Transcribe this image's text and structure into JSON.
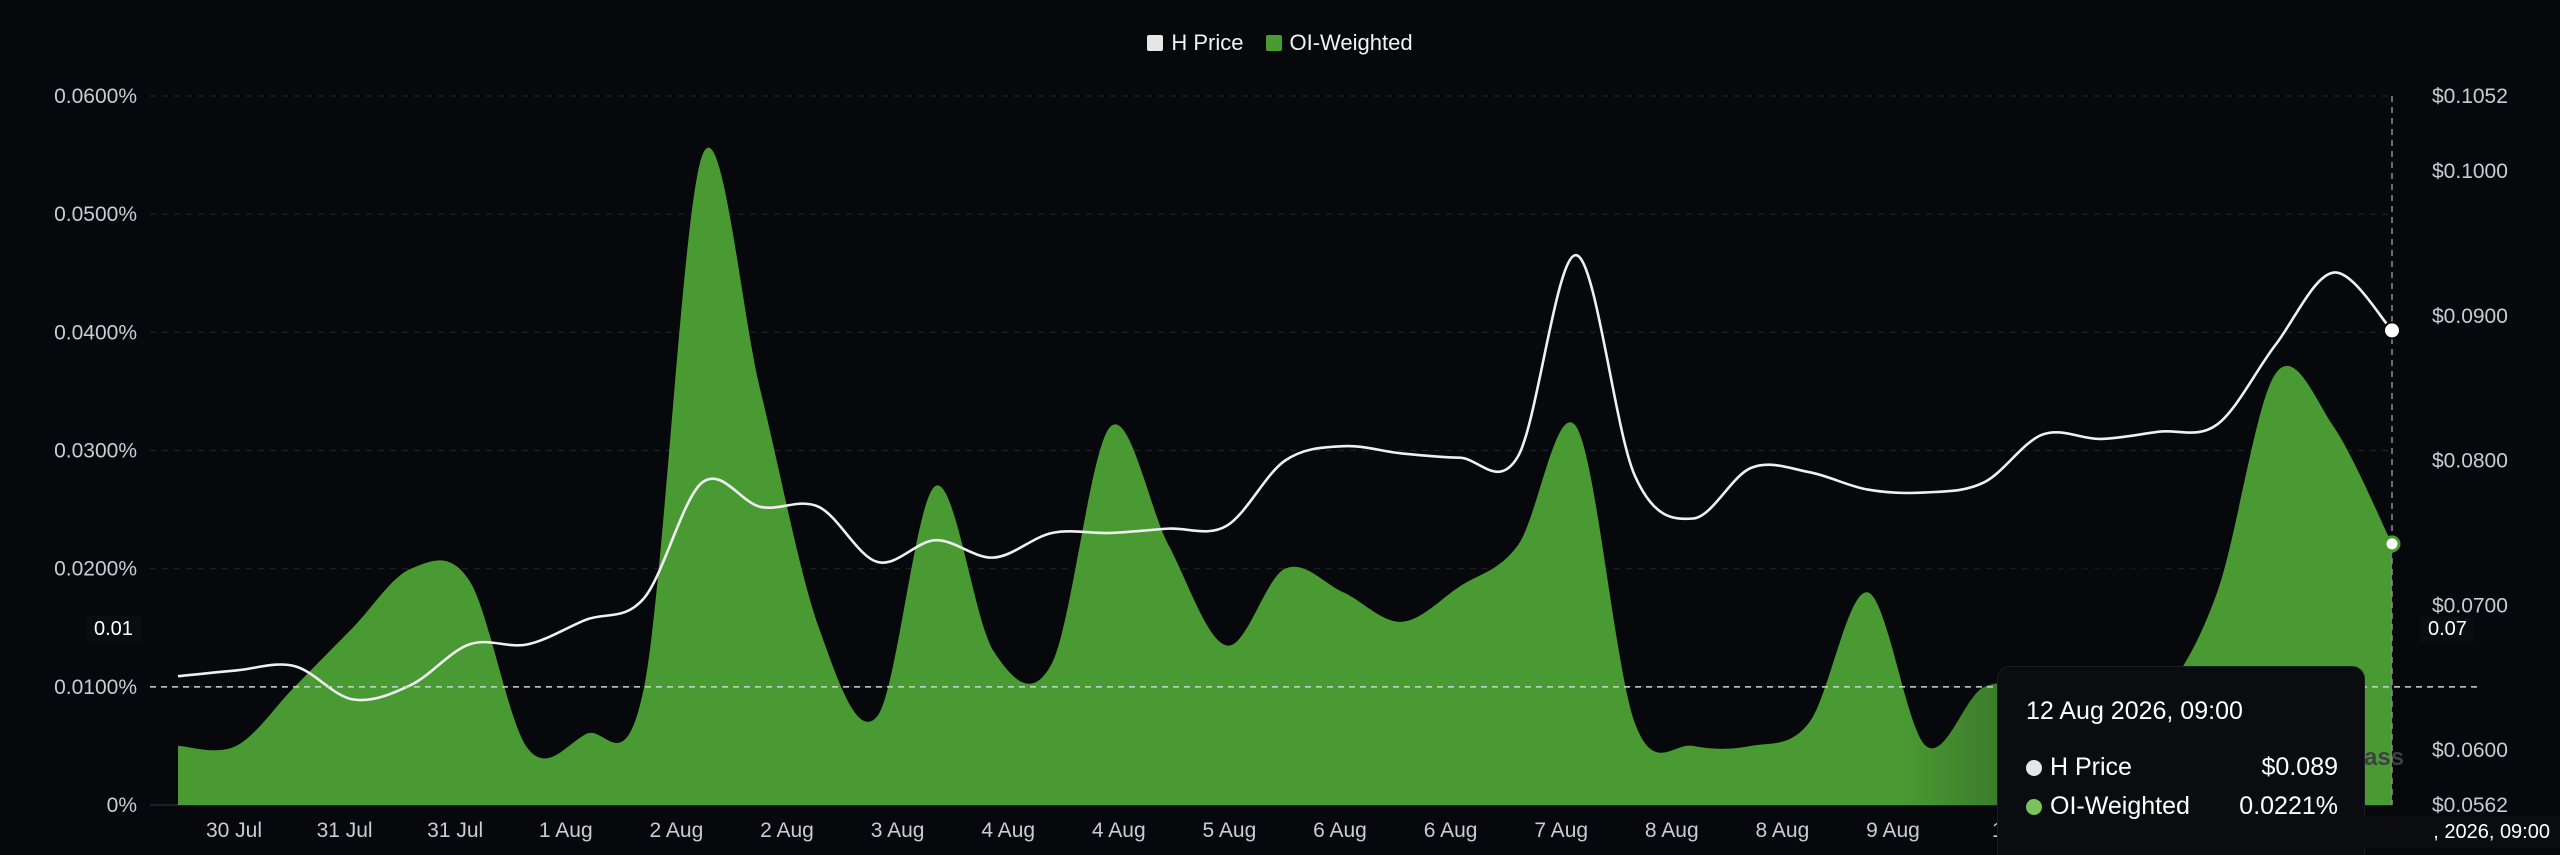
{
  "legend": [
    {
      "label": "H Price",
      "color": "#e6e6e6"
    },
    {
      "label": "OI-Weighted",
      "color": "#4a9a33"
    }
  ],
  "left_axis_ticks": [
    "0%",
    "0.0100%",
    "0.0200%",
    "0.0300%",
    "0.0400%",
    "0.0500%",
    "0.0600%"
  ],
  "right_axis_ticks": [
    "$0.0562",
    "$0.0600",
    "$0.0700",
    "$0.0800",
    "$0.0900",
    "$0.1000",
    "$0.1052"
  ],
  "x_axis_ticks": [
    "30 Jul",
    "31 Jul",
    "31 Jul",
    "1 Aug",
    "2 Aug",
    "2 Aug",
    "3 Aug",
    "4 Aug",
    "4 Aug",
    "5 Aug",
    "6 Aug",
    "6 Aug",
    "7 Aug",
    "8 Aug",
    "8 Aug",
    "9 Aug",
    "10"
  ],
  "crosshair": {
    "left_label": "0.01",
    "right_label": "0.07",
    "x_label": ", 2026, 09:00"
  },
  "tooltip": {
    "title": "12 Aug 2026, 09:00",
    "rows": [
      {
        "label": "H Price",
        "value": "$0.089",
        "color": "#e6e6e6"
      },
      {
        "label": "OI-Weighted",
        "value": "0.0221%",
        "color": "#7ac25c"
      }
    ]
  },
  "watermark": "ass",
  "chart_data": {
    "type": "area",
    "title": "",
    "xlabel": "",
    "ylabel": "",
    "ylim": [
      0,
      0.06
    ],
    "y2lim": [
      0.0562,
      0.1052
    ],
    "grid": true,
    "legend_position": "top-center",
    "x": [
      "30 Jul",
      "",
      "31 Jul",
      "",
      "31 Jul",
      "",
      "1 Aug",
      "",
      "2 Aug",
      "",
      "2 Aug",
      "",
      "3 Aug",
      "",
      "4 Aug",
      "",
      "4 Aug",
      "",
      "5 Aug",
      "",
      "6 Aug",
      "",
      "6 Aug",
      "",
      "7 Aug",
      "",
      "8 Aug",
      "",
      "8 Aug",
      "",
      "9 Aug",
      "",
      "10",
      "",
      "",
      "",
      "",
      "",
      "12 Aug 2026, 09:00"
    ],
    "series": [
      {
        "name": "OI-Weighted",
        "axis": "left",
        "color": "#4a9a33",
        "values": [
          0.005,
          0.005,
          0.01,
          0.015,
          0.02,
          0.019,
          0.0048,
          0.006,
          0.01,
          0.055,
          0.035,
          0.015,
          0.0075,
          0.027,
          0.013,
          0.012,
          0.032,
          0.022,
          0.0135,
          0.02,
          0.018,
          0.0155,
          0.0185,
          0.022,
          0.032,
          0.007,
          0.005,
          0.005,
          0.007,
          0.018,
          0.005,
          0.01,
          0.0095,
          0.007,
          0.009,
          0.018,
          0.0365,
          0.032,
          0.0221
        ]
      },
      {
        "name": "H Price",
        "axis": "right",
        "color": "#f0f0f0",
        "values": [
          0.0651,
          0.0655,
          0.0658,
          0.0635,
          0.0645,
          0.0673,
          0.0673,
          0.069,
          0.0705,
          0.0785,
          0.0768,
          0.0768,
          0.073,
          0.0745,
          0.0733,
          0.075,
          0.075,
          0.0753,
          0.0755,
          0.08,
          0.081,
          0.0805,
          0.0802,
          0.0803,
          0.0942,
          0.079,
          0.076,
          0.0795,
          0.0792,
          0.078,
          0.0778,
          0.0785,
          0.0818,
          0.0815,
          0.082,
          0.0825,
          0.088,
          0.093,
          0.089
        ]
      }
    ]
  }
}
